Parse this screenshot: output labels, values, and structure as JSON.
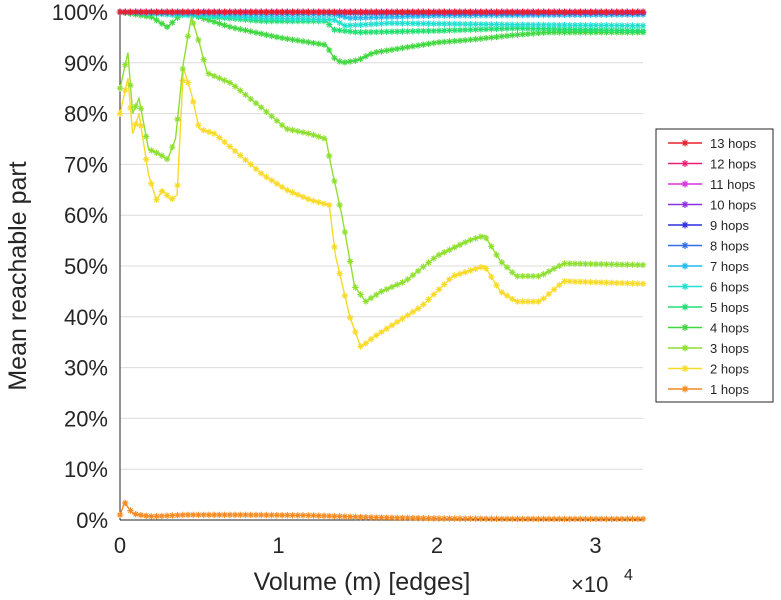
{
  "chart_data": {
    "type": "line",
    "title": "",
    "xlabel": "Volume (m) [edges]",
    "ylabel": "Mean reachable part",
    "x_multiplier_label": "×10",
    "x_multiplier_exp": "4",
    "xlim": [
      0,
      33000
    ],
    "ylim": [
      0,
      100
    ],
    "x_ticks": [
      0,
      10000,
      20000,
      30000
    ],
    "x_tick_labels": [
      "0",
      "1",
      "2",
      "3"
    ],
    "y_ticks": [
      0,
      10,
      20,
      30,
      40,
      50,
      60,
      70,
      80,
      90,
      100
    ],
    "y_tick_labels": [
      "0%",
      "10%",
      "20%",
      "30%",
      "40%",
      "50%",
      "60%",
      "70%",
      "80%",
      "90%",
      "100%"
    ],
    "grid": true,
    "legend_position": "right",
    "series": [
      {
        "name": "13 hops",
        "color": "#e8202a",
        "x": [
          0,
          33000
        ],
        "y": [
          100,
          100
        ]
      },
      {
        "name": "12 hops",
        "color": "#ea1f76",
        "x": [
          0,
          33000
        ],
        "y": [
          100,
          100
        ]
      },
      {
        "name": "11 hops",
        "color": "#d92fe0",
        "x": [
          0,
          33000
        ],
        "y": [
          100,
          100
        ]
      },
      {
        "name": "10 hops",
        "color": "#8e30e0",
        "x": [
          0,
          33000
        ],
        "y": [
          100,
          100
        ]
      },
      {
        "name": "9 hops",
        "color": "#2b2fe0",
        "x": [
          0,
          33000
        ],
        "y": [
          100,
          100
        ]
      },
      {
        "name": "8 hops",
        "color": "#2f6fe8",
        "x": [
          0,
          3000,
          13000,
          14000,
          33000
        ],
        "y": [
          100,
          100,
          100,
          99.8,
          99.8
        ]
      },
      {
        "name": "7 hops",
        "color": "#22b8f0",
        "x": [
          0,
          3000,
          9000,
          13500,
          14500,
          20000,
          33000
        ],
        "y": [
          100,
          99.8,
          99.5,
          99.5,
          98.8,
          99.3,
          99.5
        ]
      },
      {
        "name": "6 hops",
        "color": "#22e0d0",
        "x": [
          0,
          3000,
          9000,
          13500,
          14200,
          17000,
          25000,
          33000
        ],
        "y": [
          100,
          99.5,
          98.8,
          98.5,
          97.3,
          97.8,
          97.5,
          97.3
        ]
      },
      {
        "name": "5 hops",
        "color": "#20e070",
        "x": [
          0,
          3000,
          6000,
          9000,
          13000,
          13500,
          15000,
          20000,
          25000,
          30000,
          33000
        ],
        "y": [
          100,
          99.8,
          99,
          98.2,
          98.2,
          96.5,
          96,
          96.3,
          96.8,
          96.5,
          96.3
        ]
      },
      {
        "name": "4 hops",
        "color": "#40d840",
        "x": [
          0,
          2000,
          3000,
          4000,
          5000,
          7000,
          10000,
          12000,
          13000,
          13500,
          14000,
          15000,
          16000,
          18000,
          20000,
          22000,
          25000,
          27000,
          30000,
          33000
        ],
        "y": [
          100,
          99,
          97,
          100,
          99,
          97,
          95,
          94,
          93.5,
          91,
          90,
          90.5,
          92,
          93,
          94,
          94.5,
          95.5,
          96,
          96,
          96
        ]
      },
      {
        "name": "3 hops",
        "color": "#8ee030",
        "x": [
          0,
          500,
          800,
          1200,
          1800,
          2500,
          3000,
          3500,
          4000,
          4500,
          5000,
          5500,
          7000,
          9000,
          10500,
          12000,
          13000,
          13300,
          14000,
          14800,
          15500,
          16500,
          18000,
          20000,
          22000,
          23000,
          24000,
          25000,
          26500,
          28000,
          33000
        ],
        "y": [
          85,
          92,
          80,
          83,
          73,
          72,
          71,
          75,
          90,
          99,
          94,
          88,
          86,
          81,
          77,
          76,
          75,
          70,
          60,
          46,
          43,
          45,
          47,
          52,
          55,
          56,
          51,
          48,
          48,
          50.5,
          50.2
        ]
      },
      {
        "name": "2 hops",
        "color": "#f8da28",
        "x": [
          0,
          500,
          800,
          1200,
          1800,
          2300,
          2700,
          3200,
          3600,
          4000,
          4500,
          5000,
          6000,
          7500,
          9000,
          10500,
          12000,
          13200,
          13600,
          14500,
          15200,
          16000,
          17000,
          19000,
          21000,
          23000,
          24000,
          25000,
          26500,
          28000,
          33000
        ],
        "y": [
          80,
          87,
          76,
          80,
          68,
          63,
          65,
          63,
          64,
          89,
          84,
          77,
          76,
          72,
          68,
          65,
          63,
          62,
          52,
          40,
          34,
          36,
          38,
          42,
          48,
          50,
          45,
          43,
          43,
          47,
          46.5
        ]
      },
      {
        "name": "1 hops",
        "color": "#f58a20",
        "x": [
          0,
          300,
          500,
          800,
          1200,
          2000,
          4000,
          8000,
          12000,
          16000,
          20000,
          25000,
          30000,
          33000
        ],
        "y": [
          1,
          3.5,
          2.5,
          1.3,
          1,
          0.7,
          1,
          1,
          0.9,
          0.5,
          0.3,
          0.2,
          0.2,
          0.2
        ]
      }
    ]
  }
}
